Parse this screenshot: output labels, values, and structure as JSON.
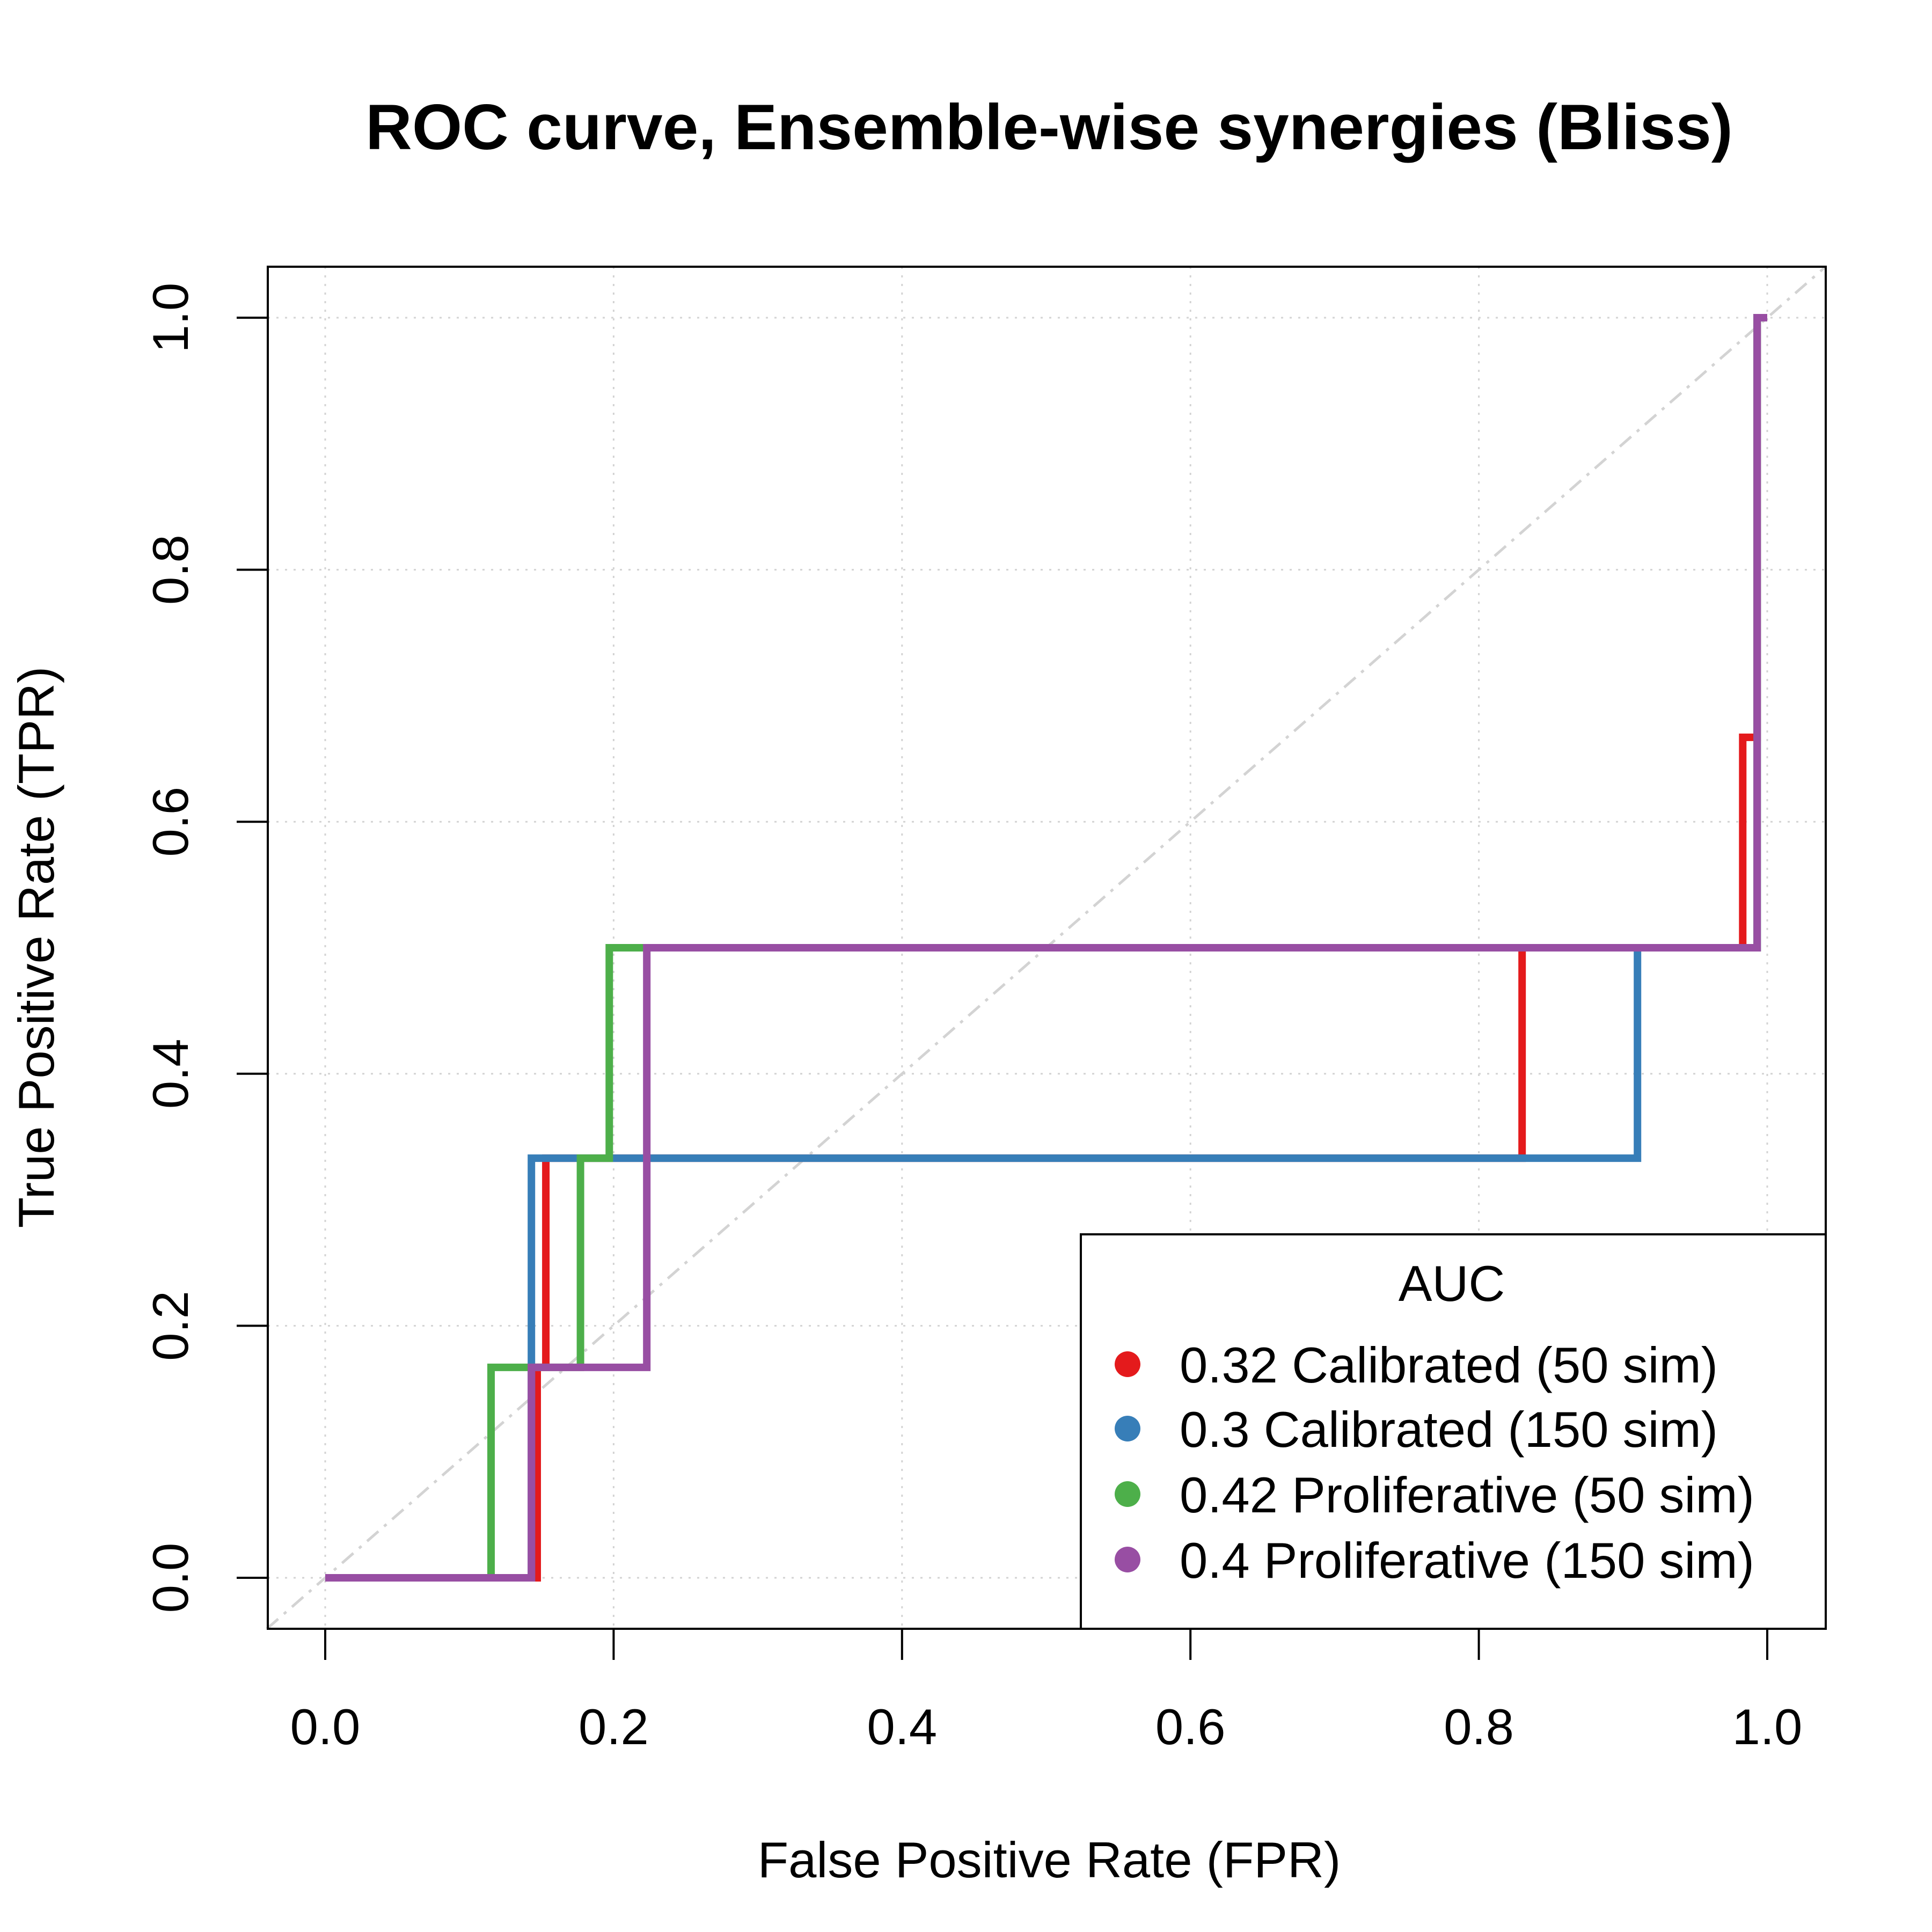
{
  "chart_data": {
    "type": "line",
    "title": "ROC curve, Ensemble-wise synergies (Bliss)",
    "xlabel": "False Positive Rate (FPR)",
    "ylabel": "True Positive Rate (TPR)",
    "xlim": [
      0,
      1
    ],
    "ylim": [
      0,
      1
    ],
    "xticks": [
      "0.0",
      "0.2",
      "0.4",
      "0.6",
      "0.8",
      "1.0"
    ],
    "yticks": [
      "0.0",
      "0.2",
      "0.4",
      "0.6",
      "0.8",
      "1.0"
    ],
    "grid": true,
    "diagonal_reference": true,
    "legend": {
      "title": "AUC",
      "position": "bottom-right"
    },
    "series": [
      {
        "name": "0.32 Calibrated (50 sim)",
        "color": "#E41A1C",
        "x": [
          0,
          0.147,
          0.147,
          0.153,
          0.153,
          0.83,
          0.83,
          0.983,
          0.983,
          0.993,
          0.993,
          1.0
        ],
        "y": [
          0,
          0,
          0.167,
          0.167,
          0.333,
          0.333,
          0.5,
          0.5,
          0.667,
          0.667,
          1.0,
          1.0
        ]
      },
      {
        "name": "0.3 Calibrated (150 sim)",
        "color": "#377EB8",
        "x": [
          0,
          0.143,
          0.143,
          0.163,
          0.91,
          0.91,
          0.993,
          0.993,
          1.0
        ],
        "y": [
          0,
          0,
          0.333,
          0.333,
          0.333,
          0.5,
          0.5,
          1.0,
          1.0
        ]
      },
      {
        "name": "0.42 Proliferative (50 sim)",
        "color": "#4DAF4A",
        "x": [
          0,
          0.115,
          0.115,
          0.177,
          0.177,
          0.197,
          0.197,
          0.993,
          0.993,
          1.0
        ],
        "y": [
          0,
          0,
          0.167,
          0.167,
          0.333,
          0.333,
          0.5,
          0.5,
          1.0,
          1.0
        ]
      },
      {
        "name": "0.4 Proliferative (150 sim)",
        "color": "#984EA3",
        "x": [
          0,
          0.143,
          0.143,
          0.223,
          0.223,
          0.993,
          0.993,
          1.0
        ],
        "y": [
          0,
          0,
          0.167,
          0.167,
          0.5,
          0.5,
          1.0,
          1.0
        ]
      }
    ]
  }
}
